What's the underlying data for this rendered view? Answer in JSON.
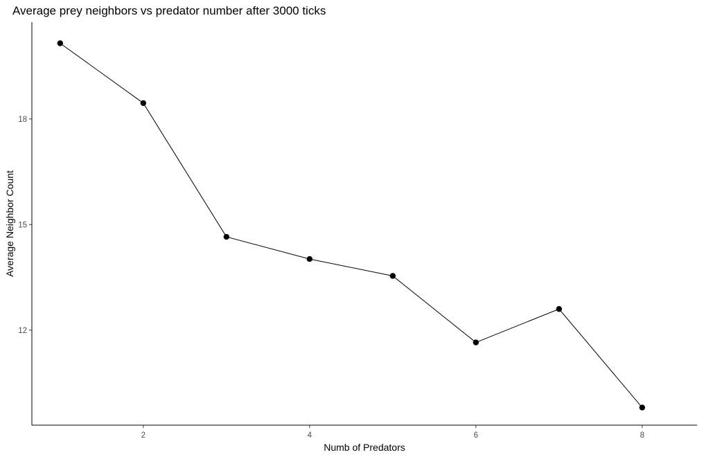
{
  "chart_data": {
    "type": "line",
    "title": "Average prey neighbors vs predator number after 3000 ticks",
    "xlabel": "Numb of Predators",
    "ylabel": "Average Neighbor Count",
    "x": [
      1,
      2,
      3,
      4,
      5,
      6,
      7,
      8
    ],
    "series": [
      {
        "name": "Average Neighbor Count",
        "values": [
          20.15,
          18.45,
          14.65,
          14.02,
          13.54,
          11.65,
          12.6,
          9.8
        ]
      }
    ],
    "x_ticks": [
      2,
      4,
      6,
      8
    ],
    "x_tick_labels": [
      "2",
      "4",
      "6",
      "8"
    ],
    "y_ticks": [
      12,
      15,
      18
    ],
    "y_tick_labels": [
      "12",
      "15",
      "18"
    ],
    "xlim": [
      0.66,
      8.66
    ],
    "ylim": [
      9.3,
      20.75
    ],
    "grid": false,
    "legend": "none",
    "colors": {
      "line": "#000000",
      "point": "#000000",
      "axis": "#000000",
      "tick_text": "#4d4d4d"
    }
  }
}
